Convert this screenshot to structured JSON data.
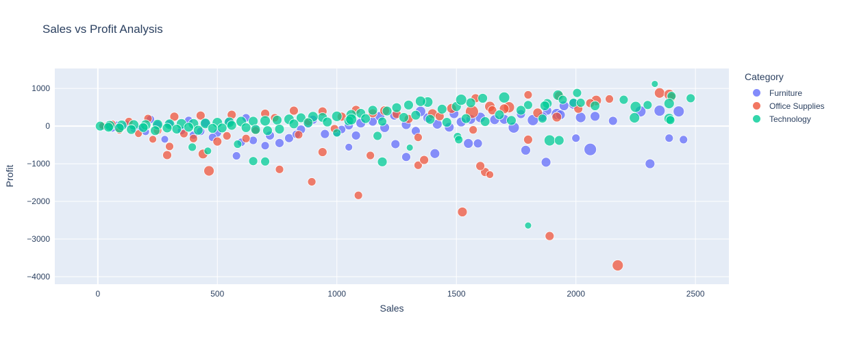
{
  "chart_data": {
    "type": "scatter",
    "title": "Sales vs Profit Analysis",
    "xlabel": "Sales",
    "ylabel": "Profit",
    "xlim": [
      -180,
      2640
    ],
    "ylim": [
      -4200,
      1530
    ],
    "x_ticks": [
      0,
      500,
      1000,
      1500,
      2000,
      2500
    ],
    "y_ticks": [
      -4000,
      -3000,
      -2000,
      -1000,
      0,
      1000
    ],
    "legend_title": "Category",
    "legend_position": "right",
    "grid": true,
    "bubble": true,
    "series": [
      {
        "name": "Furniture",
        "color": "#636efa",
        "points": [
          [
            1790,
            -640,
            10
          ],
          [
            1875,
            -960,
            10
          ],
          [
            2060,
            -620,
            14
          ],
          [
            2310,
            -1000,
            10
          ],
          [
            2390,
            -320,
            8
          ],
          [
            2450,
            -360,
            8
          ],
          [
            1550,
            -460,
            10
          ],
          [
            1590,
            -460,
            9
          ],
          [
            1410,
            -730,
            10
          ],
          [
            1290,
            -820,
            9
          ],
          [
            1245,
            -480,
            9
          ],
          [
            1050,
            -560,
            7
          ],
          [
            1820,
            160,
            12
          ],
          [
            1920,
            320,
            12
          ],
          [
            2020,
            230,
            11
          ],
          [
            2155,
            140,
            9
          ],
          [
            2270,
            390,
            12
          ],
          [
            2350,
            410,
            12
          ],
          [
            2430,
            390,
            12
          ],
          [
            1990,
            590,
            11
          ],
          [
            1950,
            540,
            10
          ],
          [
            1880,
            410,
            9
          ],
          [
            1740,
            -40,
            12
          ],
          [
            1660,
            170,
            10
          ],
          [
            1600,
            230,
            11
          ],
          [
            1520,
            110,
            10
          ],
          [
            1470,
            -30,
            10
          ],
          [
            1420,
            50,
            10
          ],
          [
            1380,
            220,
            10
          ],
          [
            1330,
            -130,
            9
          ],
          [
            1290,
            40,
            10
          ],
          [
            1240,
            280,
            9
          ],
          [
            1200,
            -40,
            10
          ],
          [
            1150,
            120,
            9
          ],
          [
            1100,
            80,
            10
          ],
          [
            1050,
            20,
            9
          ],
          [
            1000,
            -160,
            9
          ],
          [
            950,
            -210,
            9
          ],
          [
            900,
            170,
            9
          ],
          [
            850,
            -90,
            9
          ],
          [
            800,
            -320,
            9
          ],
          [
            760,
            -450,
            9
          ],
          [
            720,
            -250,
            9
          ],
          [
            700,
            -520,
            8
          ],
          [
            650,
            -380,
            8
          ],
          [
            600,
            -430,
            8
          ],
          [
            580,
            -790,
            8
          ],
          [
            550,
            120,
            9
          ],
          [
            500,
            -180,
            8
          ],
          [
            450,
            80,
            9
          ],
          [
            400,
            -240,
            8
          ],
          [
            380,
            150,
            8
          ],
          [
            350,
            -120,
            8
          ],
          [
            300,
            60,
            8
          ],
          [
            280,
            -350,
            7
          ],
          [
            250,
            40,
            8
          ],
          [
            220,
            180,
            8
          ],
          [
            200,
            -150,
            7
          ],
          [
            180,
            -60,
            7
          ],
          [
            150,
            -70,
            7
          ],
          [
            120,
            50,
            7
          ],
          [
            100,
            -40,
            7
          ],
          [
            80,
            30,
            7
          ],
          [
            60,
            -60,
            7
          ],
          [
            40,
            30,
            7
          ],
          [
            20,
            -20,
            7
          ],
          [
            1935,
            300,
            10
          ],
          [
            2000,
            -320,
            8
          ],
          [
            2080,
            260,
            10
          ],
          [
            1700,
            180,
            10
          ],
          [
            1770,
            320,
            9
          ],
          [
            1860,
            250,
            10
          ],
          [
            1560,
            180,
            10
          ],
          [
            1490,
            330,
            10
          ],
          [
            1350,
            390,
            11
          ],
          [
            1180,
            260,
            10
          ],
          [
            1080,
            -250,
            9
          ],
          [
            1020,
            -90,
            8
          ],
          [
            880,
            60,
            9
          ],
          [
            830,
            -220,
            8
          ],
          [
            660,
            -80,
            8
          ],
          [
            620,
            220,
            8
          ],
          [
            480,
            -300,
            8
          ],
          [
            430,
            -140,
            8
          ]
        ]
      },
      {
        "name": "Office Supplies",
        "color": "#ef553b",
        "points": [
          [
            2175,
            -3700,
            12
          ],
          [
            1890,
            -2920,
            9
          ],
          [
            1525,
            -2280,
            10
          ],
          [
            1090,
            -1840,
            8
          ],
          [
            895,
            -1480,
            8
          ],
          [
            1620,
            -1220,
            9
          ],
          [
            1640,
            -1290,
            7
          ],
          [
            1600,
            -1060,
            9
          ],
          [
            1340,
            -1040,
            8
          ],
          [
            1365,
            -900,
            9
          ],
          [
            1140,
            -780,
            8
          ],
          [
            940,
            -690,
            9
          ],
          [
            760,
            -1150,
            8
          ],
          [
            465,
            -1190,
            11
          ],
          [
            440,
            -740,
            10
          ],
          [
            290,
            -770,
            9
          ],
          [
            300,
            -540,
            8
          ],
          [
            1800,
            -360,
            9
          ],
          [
            1340,
            -300,
            8
          ],
          [
            1720,
            500,
            12
          ],
          [
            1565,
            380,
            15
          ],
          [
            1640,
            520,
            11
          ],
          [
            2085,
            680,
            11
          ],
          [
            2060,
            610,
            9
          ],
          [
            2350,
            880,
            11
          ],
          [
            2390,
            840,
            11
          ],
          [
            2400,
            770,
            9
          ],
          [
            1800,
            830,
            8
          ],
          [
            1580,
            740,
            9
          ],
          [
            1200,
            410,
            10
          ],
          [
            1080,
            430,
            9
          ],
          [
            940,
            390,
            9
          ],
          [
            820,
            410,
            9
          ],
          [
            700,
            330,
            9
          ],
          [
            560,
            300,
            9
          ],
          [
            430,
            280,
            9
          ],
          [
            320,
            250,
            9
          ],
          [
            210,
            200,
            8
          ],
          [
            130,
            120,
            8
          ],
          [
            60,
            60,
            7
          ],
          [
            20,
            10,
            7
          ],
          [
            90,
            -110,
            7
          ],
          [
            170,
            -200,
            7
          ],
          [
            250,
            -120,
            8
          ],
          [
            360,
            -200,
            8
          ],
          [
            500,
            -410,
            9
          ],
          [
            620,
            -330,
            8
          ],
          [
            740,
            220,
            8
          ],
          [
            880,
            120,
            8
          ],
          [
            1020,
            250,
            9
          ],
          [
            1150,
            340,
            9
          ],
          [
            1250,
            320,
            9
          ],
          [
            1400,
            330,
            10
          ],
          [
            1480,
            470,
            10
          ],
          [
            1700,
            460,
            10
          ],
          [
            1840,
            350,
            10
          ],
          [
            1920,
            240,
            10
          ],
          [
            2010,
            460,
            9
          ],
          [
            2140,
            720,
            8
          ],
          [
            1650,
            420,
            9
          ],
          [
            1930,
            800,
            10
          ],
          [
            1570,
            -100,
            8
          ],
          [
            1430,
            260,
            9
          ],
          [
            1300,
            190,
            9
          ],
          [
            990,
            -70,
            8
          ],
          [
            840,
            -230,
            8
          ],
          [
            660,
            -120,
            8
          ],
          [
            540,
            -260,
            8
          ],
          [
            400,
            -330,
            8
          ],
          [
            230,
            -350,
            7
          ]
        ]
      },
      {
        "name": "Technology",
        "color": "#00cc96",
        "points": [
          [
            1800,
            -2640,
            6
          ],
          [
            1190,
            -950,
            10
          ],
          [
            1000,
            -180,
            8
          ],
          [
            1505,
            -280,
            8
          ],
          [
            1510,
            -360,
            8
          ],
          [
            1305,
            -570,
            6
          ],
          [
            700,
            -940,
            9
          ],
          [
            650,
            -930,
            9
          ],
          [
            585,
            -480,
            8
          ],
          [
            395,
            -560,
            8
          ],
          [
            460,
            -660,
            7
          ],
          [
            1890,
            -380,
            12
          ],
          [
            1930,
            -380,
            10
          ],
          [
            2330,
            1120,
            6
          ],
          [
            2400,
            800,
            9
          ],
          [
            2480,
            740,
            9
          ],
          [
            2390,
            600,
            11
          ],
          [
            2390,
            200,
            11
          ],
          [
            2395,
            160,
            9
          ],
          [
            2300,
            560,
            9
          ],
          [
            2250,
            510,
            12
          ],
          [
            2245,
            220,
            11
          ],
          [
            2200,
            700,
            9
          ],
          [
            2005,
            880,
            9
          ],
          [
            1925,
            820,
            11
          ],
          [
            1945,
            700,
            9
          ],
          [
            1880,
            600,
            10
          ],
          [
            1990,
            620,
            9
          ],
          [
            2020,
            620,
            9
          ],
          [
            1870,
            540,
            10
          ],
          [
            1800,
            560,
            9
          ],
          [
            1770,
            420,
            10
          ],
          [
            1700,
            760,
            12
          ],
          [
            1610,
            740,
            10
          ],
          [
            1560,
            620,
            10
          ],
          [
            1500,
            520,
            10
          ],
          [
            1440,
            450,
            10
          ],
          [
            1380,
            640,
            11
          ],
          [
            1350,
            660,
            11
          ],
          [
            1300,
            560,
            10
          ],
          [
            1250,
            490,
            10
          ],
          [
            1210,
            400,
            10
          ],
          [
            1150,
            420,
            10
          ],
          [
            1100,
            340,
            10
          ],
          [
            1060,
            300,
            11
          ],
          [
            1000,
            260,
            11
          ],
          [
            940,
            230,
            10
          ],
          [
            900,
            250,
            11
          ],
          [
            850,
            220,
            10
          ],
          [
            800,
            180,
            11
          ],
          [
            750,
            160,
            10
          ],
          [
            700,
            140,
            11
          ],
          [
            650,
            130,
            10
          ],
          [
            600,
            120,
            11
          ],
          [
            550,
            100,
            11
          ],
          [
            500,
            90,
            11
          ],
          [
            450,
            70,
            11
          ],
          [
            400,
            60,
            11
          ],
          [
            350,
            60,
            11
          ],
          [
            300,
            50,
            11
          ],
          [
            250,
            40,
            11
          ],
          [
            200,
            30,
            11
          ],
          [
            150,
            30,
            11
          ],
          [
            100,
            20,
            11
          ],
          [
            50,
            10,
            11
          ],
          [
            10,
            0,
            10
          ],
          [
            1730,
            150,
            10
          ],
          [
            1620,
            120,
            10
          ],
          [
            1540,
            200,
            10
          ],
          [
            1460,
            100,
            10
          ],
          [
            1390,
            180,
            10
          ],
          [
            1330,
            290,
            10
          ],
          [
            1280,
            230,
            10
          ],
          [
            1190,
            120,
            9
          ],
          [
            1120,
            200,
            10
          ],
          [
            1050,
            140,
            10
          ],
          [
            960,
            110,
            10
          ],
          [
            880,
            90,
            10
          ],
          [
            820,
            60,
            10
          ],
          [
            760,
            -80,
            10
          ],
          [
            710,
            -120,
            10
          ],
          [
            660,
            -90,
            10
          ],
          [
            620,
            -40,
            10
          ],
          [
            560,
            20,
            10
          ],
          [
            520,
            -50,
            10
          ],
          [
            480,
            -60,
            10
          ],
          [
            420,
            -110,
            10
          ],
          [
            380,
            -30,
            10
          ],
          [
            330,
            -80,
            10
          ],
          [
            290,
            -50,
            10
          ],
          [
            240,
            -120,
            10
          ],
          [
            190,
            -40,
            10
          ],
          [
            140,
            -90,
            10
          ],
          [
            90,
            -50,
            10
          ],
          [
            45,
            -30,
            10
          ],
          [
            1170,
            -260,
            9
          ],
          [
            1060,
            180,
            12
          ],
          [
            1520,
            700,
            12
          ],
          [
            1680,
            300,
            10
          ],
          [
            1860,
            200,
            9
          ],
          [
            2080,
            540,
            10
          ]
        ]
      }
    ]
  }
}
